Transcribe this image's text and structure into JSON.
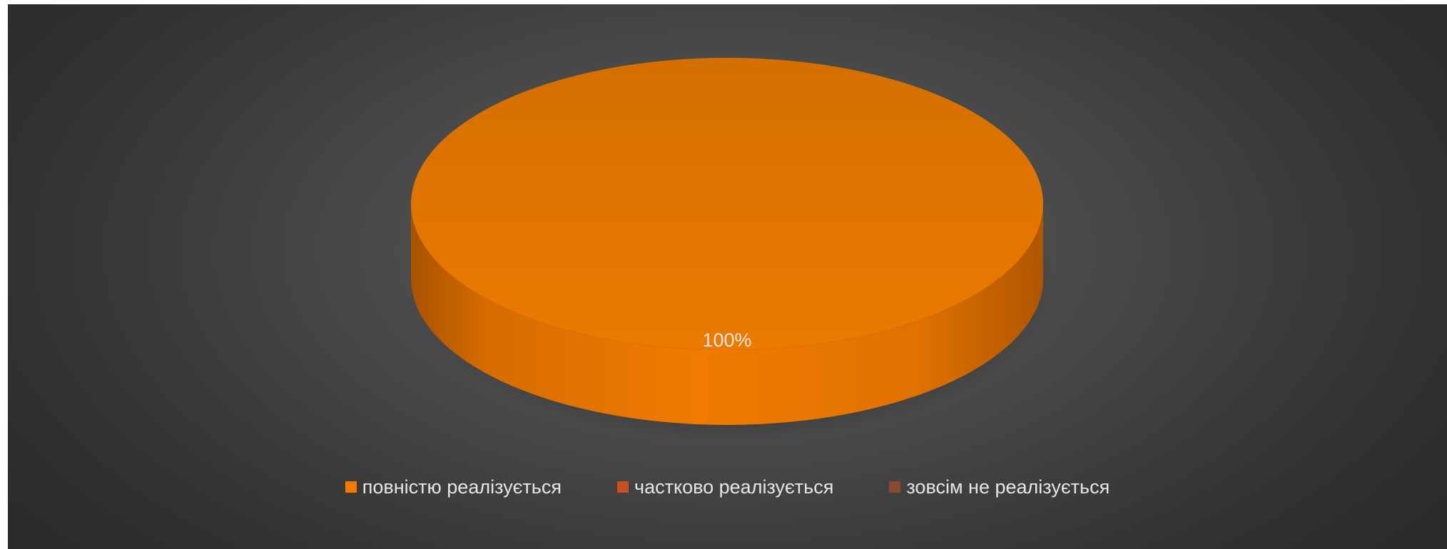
{
  "chart_data": {
    "type": "pie",
    "style": "3d",
    "categories": [
      "повністю реалізується",
      "частково реалізується",
      "зовсім не реалізується"
    ],
    "values": [
      100,
      0,
      0
    ],
    "colors": [
      "#f07b00",
      "#c8501c",
      "#8b4a2b"
    ],
    "data_labels": [
      "100%",
      "",
      ""
    ],
    "legend_position": "bottom",
    "background": "#4a4a4a"
  }
}
